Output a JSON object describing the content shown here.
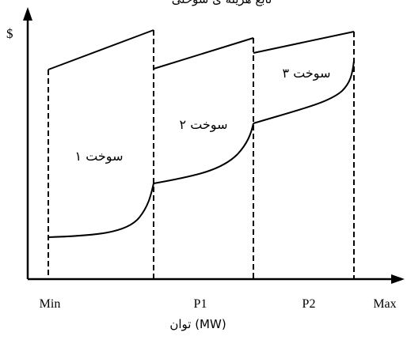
{
  "figure": {
    "top_caption": "تابع هزینه ی سوختی",
    "y_axis_label": "$",
    "x_axis_name": "توان (MW)",
    "x_ticks": [
      "Min",
      "P1",
      "P2",
      "Max"
    ],
    "regions": [
      "سوخت ۱",
      "سوخت ۲",
      "سوخت ۳"
    ]
  },
  "colors": {
    "ink": "#000000",
    "background": "#ffffff"
  }
}
